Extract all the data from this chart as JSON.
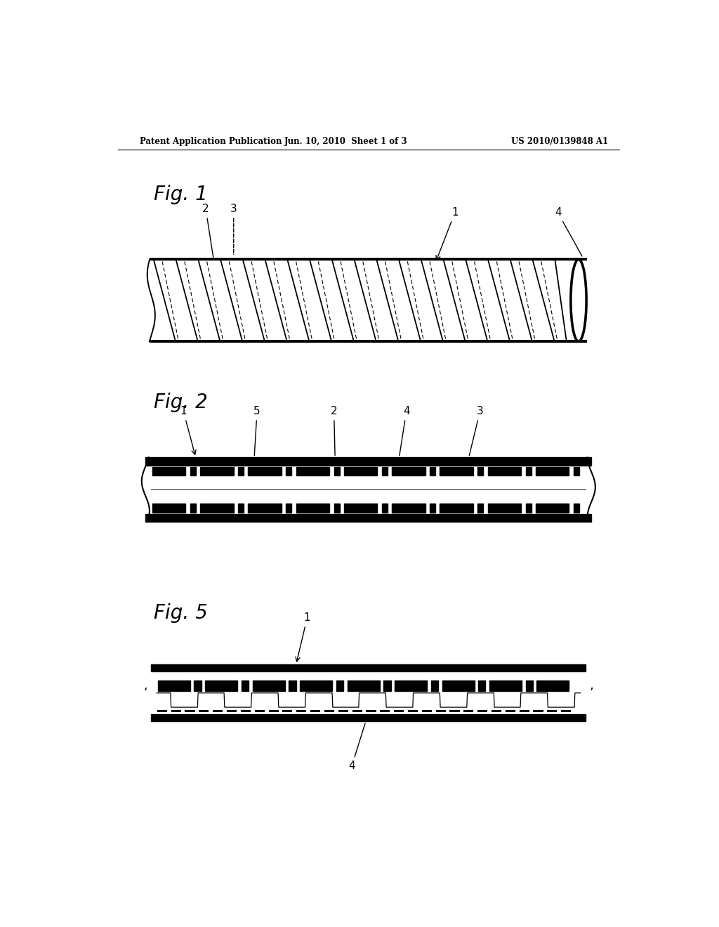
{
  "background_color": "#ffffff",
  "header_left": "Patent Application Publication",
  "header_center": "Jun. 10, 2010  Sheet 1 of 3",
  "header_right": "US 2010/0139848 A1",
  "fig1_label": "Fig. 1",
  "fig2_label": "Fig. 2",
  "fig5_label": "Fig. 5",
  "line_color": "#000000"
}
